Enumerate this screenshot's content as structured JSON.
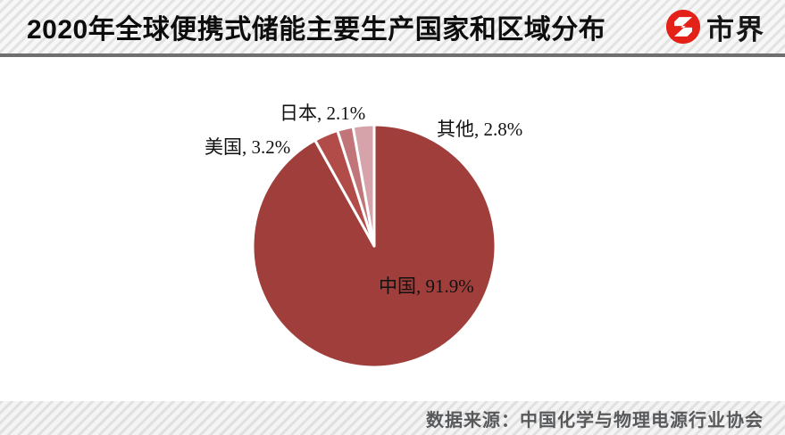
{
  "header": {
    "title": "2020年全球便携式储能主要生产国家和区域分布",
    "logo_text": "市界",
    "logo_color": "#e32119"
  },
  "chart_data": {
    "type": "pie",
    "title": "2020年全球便携式储能主要生产国家和区域分布",
    "unit": "%",
    "start_angle_deg": 0,
    "direction": "clockwise",
    "legend": "none",
    "slices": [
      {
        "name": "中国",
        "value": 91.9,
        "color": "#a03e3c",
        "label": "中国, 91.9%"
      },
      {
        "name": "美国",
        "value": 3.2,
        "color": "#b14c49",
        "label": "美国, 3.2%"
      },
      {
        "name": "日本",
        "value": 2.1,
        "color": "#c27578",
        "label": "日本, 2.1%"
      },
      {
        "name": "其他",
        "value": 2.8,
        "color": "#d5a3a9",
        "label": "其他, 2.8%"
      }
    ]
  },
  "footer": {
    "source": "数据来源：中国化学与物理电源行业协会"
  }
}
